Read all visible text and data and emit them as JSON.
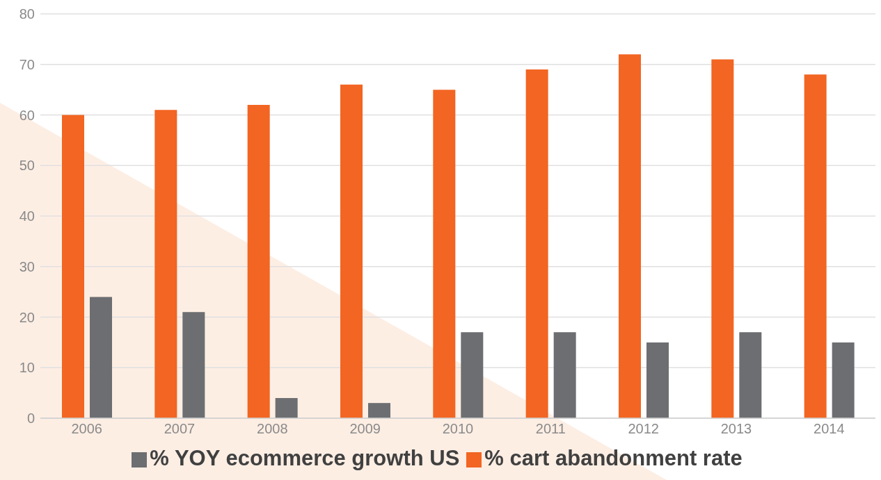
{
  "chart_data": {
    "type": "bar",
    "categories": [
      "2006",
      "2007",
      "2008",
      "2009",
      "2010",
      "2011",
      "2012",
      "2013",
      "2014"
    ],
    "series": [
      {
        "name": "% cart abandonment rate",
        "color": "#f26522",
        "values": [
          60,
          61,
          62,
          66,
          65,
          69,
          72,
          71,
          68
        ]
      },
      {
        "name": "% YOY ecommerce growth US",
        "color": "#6d6e71",
        "values": [
          24,
          21,
          4,
          3,
          17,
          17,
          15,
          17,
          15
        ]
      }
    ],
    "ylim": [
      0,
      80
    ],
    "yticks": [
      0,
      10,
      20,
      30,
      40,
      50,
      60,
      70,
      80
    ],
    "grid": "y",
    "legend": "bottom"
  }
}
